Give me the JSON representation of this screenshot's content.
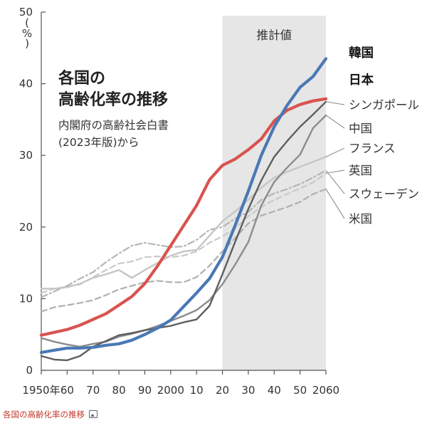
{
  "title_lines": [
    "各国の",
    "高齢化率の推移"
  ],
  "subtitle_lines": [
    "内閣府の高齢社会白書",
    "(2023年版)から"
  ],
  "caption": "各国の高齢化率の推移",
  "colors": {
    "japan": "#d9534f",
    "korea": "#4a78b5",
    "singapore": "#5e5e5e",
    "china": "#8c8c8c",
    "france": "#c6c6c6",
    "uk": "#c9c9c9",
    "sweden": "#b5b5b5",
    "usa": "#b0b0b0",
    "projection_band": "#e6e6e6"
  },
  "chart_data": {
    "type": "line",
    "title": "各国の高齢化率の推移",
    "subtitle": "内閣府の高齢社会白書(2023年版)から",
    "ylabel": "%",
    "xlabel": "",
    "ylim": [
      0,
      50
    ],
    "xlim": [
      1950,
      2060
    ],
    "y_ticks": [
      0,
      10,
      20,
      30,
      40,
      50
    ],
    "x_ticks": [
      1950,
      1960,
      1970,
      1980,
      1990,
      2000,
      2010,
      2020,
      2030,
      2040,
      2050,
      2060
    ],
    "x_tick_labels": [
      "1950年",
      "60",
      "70",
      "80",
      "90",
      "2000",
      "10",
      "20",
      "30",
      "40",
      "50",
      "2060"
    ],
    "y_unit_lines": [
      "(",
      "%",
      ")"
    ],
    "projection": {
      "label": "推計値",
      "from": 2020,
      "to": 2060
    },
    "x": [
      1950,
      1955,
      1960,
      1965,
      1970,
      1975,
      1980,
      1985,
      1990,
      1995,
      2000,
      2005,
      2010,
      2015,
      2020,
      2025,
      2030,
      2035,
      2040,
      2045,
      2050,
      2055,
      2060
    ],
    "series": [
      {
        "key": "korea",
        "name": "韓国",
        "bold": true,
        "style": "solid",
        "values": [
          2.5,
          2.8,
          3.1,
          3.1,
          3.2,
          3.5,
          3.7,
          4.2,
          5.0,
          5.9,
          7.0,
          8.9,
          10.8,
          12.8,
          15.8,
          20.3,
          25.0,
          30.0,
          34.0,
          37.0,
          39.5,
          41.0,
          43.5
        ]
      },
      {
        "key": "japan",
        "name": "日本",
        "bold": true,
        "style": "solid",
        "values": [
          4.9,
          5.3,
          5.7,
          6.3,
          7.1,
          7.9,
          9.1,
          10.3,
          12.1,
          14.6,
          17.4,
          20.2,
          23.0,
          26.6,
          28.6,
          29.5,
          30.8,
          32.3,
          34.8,
          36.3,
          37.1,
          37.6,
          37.9
        ]
      },
      {
        "key": "singapore",
        "name": "シンガポール",
        "bold": false,
        "style": "solid",
        "values": [
          2.0,
          1.5,
          1.4,
          2.0,
          3.3,
          4.1,
          4.9,
          5.2,
          5.6,
          5.9,
          6.2,
          6.7,
          7.1,
          9.0,
          13.4,
          18.0,
          22.5,
          26.5,
          29.8,
          32.0,
          34.0,
          35.7,
          37.5
        ]
      },
      {
        "key": "china",
        "name": "中国",
        "bold": false,
        "style": "solid",
        "values": [
          4.5,
          4.0,
          3.6,
          3.3,
          3.7,
          4.0,
          4.7,
          5.1,
          5.6,
          6.2,
          6.9,
          7.6,
          8.4,
          9.8,
          12.0,
          14.8,
          17.9,
          23.0,
          26.3,
          28.3,
          30.1,
          33.8,
          35.6
        ]
      },
      {
        "key": "france",
        "name": "フランス",
        "bold": false,
        "style": "solid",
        "values": [
          11.4,
          11.4,
          11.6,
          12.1,
          12.9,
          13.4,
          14.0,
          12.9,
          14.0,
          15.0,
          16.0,
          16.6,
          16.8,
          18.8,
          20.8,
          22.2,
          23.8,
          25.5,
          26.9,
          27.7,
          28.4,
          29.1,
          29.8
        ]
      },
      {
        "key": "uk",
        "name": "英国",
        "bold": false,
        "style": "dashed",
        "values": [
          10.8,
          11.4,
          11.7,
          12.0,
          13.0,
          14.0,
          14.9,
          15.2,
          15.8,
          15.9,
          15.8,
          16.0,
          16.6,
          17.8,
          18.7,
          19.8,
          21.5,
          22.8,
          23.8,
          24.6,
          25.4,
          26.2,
          27.5
        ]
      },
      {
        "key": "sweden",
        "name": "スウェーデン",
        "bold": false,
        "style": "dashdot",
        "values": [
          10.2,
          11.0,
          11.8,
          12.8,
          13.7,
          15.1,
          16.3,
          17.4,
          17.8,
          17.5,
          17.2,
          17.3,
          18.2,
          19.6,
          20.0,
          21.2,
          22.1,
          23.8,
          24.7,
          25.3,
          26.0,
          26.9,
          27.9
        ]
      },
      {
        "key": "usa",
        "name": "米国",
        "bold": false,
        "style": "dashed",
        "values": [
          8.2,
          8.8,
          9.1,
          9.4,
          9.8,
          10.5,
          11.3,
          11.8,
          12.3,
          12.5,
          12.3,
          12.3,
          13.0,
          14.6,
          16.6,
          18.5,
          20.5,
          21.6,
          22.2,
          22.8,
          23.5,
          24.6,
          25.3
        ]
      }
    ],
    "legend_placement": "right",
    "grid": false
  }
}
